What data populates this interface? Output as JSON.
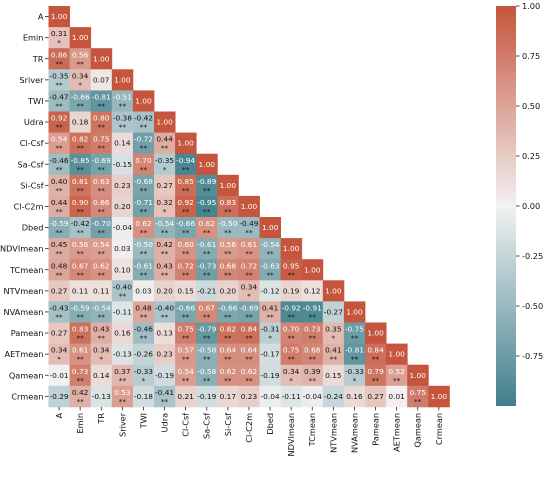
{
  "chart_data": {
    "type": "heatmap",
    "title": "",
    "xlabel": "",
    "ylabel": "",
    "variables": [
      "A",
      "Emin",
      "TR",
      "Sriver",
      "TWI",
      "Udra",
      "Cl-Csf",
      "Sa-Csf",
      "Si-Csf",
      "Cl-C2m",
      "Dbed",
      "NDVImean",
      "TCmean",
      "NTVmean",
      "NVAmean",
      "Pamean",
      "AETmean",
      "Qamean",
      "Crmean"
    ],
    "rows": [
      {
        "label": "A",
        "values": [
          "1.00"
        ],
        "sig": [
          ""
        ]
      },
      {
        "label": "Emin",
        "values": [
          "0.31",
          "1.00"
        ],
        "sig": [
          "*",
          ""
        ]
      },
      {
        "label": "TR",
        "values": [
          "0.86",
          "0.56",
          "1.00"
        ],
        "sig": [
          "**",
          "**",
          ""
        ]
      },
      {
        "label": "Sriver",
        "values": [
          "-0.35",
          "0.34",
          "0.07",
          "1.00"
        ],
        "sig": [
          "**",
          "*",
          "",
          ""
        ]
      },
      {
        "label": "TWI",
        "values": [
          "-0.47",
          "-0.66",
          "-0.81",
          "-0.51",
          "1.00"
        ],
        "sig": [
          "**",
          "**",
          "**",
          "**",
          ""
        ]
      },
      {
        "label": "Udra",
        "values": [
          "0.92",
          "0.18",
          "0.80",
          "-0.38",
          "-0.42",
          "1.00"
        ],
        "sig": [
          "**",
          "",
          "**",
          "**",
          "**",
          ""
        ]
      },
      {
        "label": "Cl-Csf",
        "values": [
          "0.54",
          "0.82",
          "0.75",
          "0.14",
          "-0.72",
          "0.44",
          "1.00"
        ],
        "sig": [
          "**",
          "**",
          "**",
          "",
          "**",
          "**",
          ""
        ]
      },
      {
        "label": "Sa-Csf",
        "values": [
          "-0.46",
          "-0.85",
          "-0.69",
          "-0.15",
          "0.70",
          "-0.35",
          "-0.94",
          "1.00"
        ],
        "sig": [
          "**",
          "**",
          "**",
          "",
          "**",
          "*",
          "**",
          ""
        ]
      },
      {
        "label": "Si-Csf",
        "values": [
          "0.40",
          "0.81",
          "0.63",
          "0.23",
          "-0.68",
          "0.27",
          "0.85",
          "-0.89",
          "1.00"
        ],
        "sig": [
          "**",
          "**",
          "**",
          "",
          "**",
          "",
          "**",
          "**",
          ""
        ]
      },
      {
        "label": "Cl-C2m",
        "values": [
          "0.44",
          "0.90",
          "0.66",
          "0.20",
          "-0.71",
          "0.32",
          "0.92",
          "-0.95",
          "0.83",
          "1.00"
        ],
        "sig": [
          "**",
          "**",
          "**",
          "",
          "**",
          "*",
          "**",
          "**",
          "**",
          ""
        ]
      },
      {
        "label": "Dbed",
        "values": [
          "-0.59",
          "-0.42",
          "-0.70",
          "-0.04",
          "0.62",
          "-0.54",
          "-0.66",
          "0.62",
          "-0.50",
          "-0.49",
          "1.00"
        ],
        "sig": [
          "**",
          "**",
          "**",
          "",
          "**",
          "**",
          "**",
          "**",
          "**",
          "**",
          ""
        ]
      },
      {
        "label": "NDVImean",
        "values": [
          "0.45",
          "0.56",
          "0.54",
          "0.03",
          "-0.50",
          "0.42",
          "0.60",
          "-0.61",
          "0.56",
          "0.61",
          "-0.54",
          "1.00"
        ],
        "sig": [
          "**",
          "**",
          "**",
          "",
          "**",
          "**",
          "**",
          "**",
          "**",
          "**",
          "**",
          ""
        ]
      },
      {
        "label": "TCmean",
        "values": [
          "0.48",
          "0.67",
          "0.62",
          "0.10",
          "-0.61",
          "0.43",
          "0.72",
          "-0.73",
          "0.68",
          "0.72",
          "-0.63",
          "0.95",
          "1.00"
        ],
        "sig": [
          "**",
          "**",
          "**",
          "",
          "**",
          "**",
          "**",
          "**",
          "**",
          "**",
          "**",
          "**",
          ""
        ]
      },
      {
        "label": "NTVmean",
        "values": [
          "0.27",
          "0.11",
          "0.11",
          "-0.40",
          "0.03",
          "0.20",
          "0.15",
          "-0.21",
          "0.20",
          "0.34",
          "-0.12",
          "0.19",
          "0.12",
          "1.00"
        ],
        "sig": [
          "",
          "",
          "",
          "**",
          "",
          "",
          "",
          "",
          "",
          "*",
          "",
          "",
          "",
          ""
        ]
      },
      {
        "label": "NVAmean",
        "values": [
          "-0.43",
          "-0.59",
          "-0.54",
          "-0.11",
          "0.48",
          "-0.40",
          "-0.66",
          "0.67",
          "-0.66",
          "-0.69",
          "0.41",
          "-0.92",
          "-0.91",
          "-0.27",
          "1.00"
        ],
        "sig": [
          "**",
          "**",
          "**",
          "",
          "**",
          "**",
          "**",
          "**",
          "**",
          "**",
          "**",
          "**",
          "**",
          "",
          ""
        ]
      },
      {
        "label": "Pamean",
        "values": [
          "0.27",
          "0.83",
          "0.43",
          "0.16",
          "-0.46",
          "0.13",
          "0.75",
          "-0.79",
          "0.82",
          "0.84",
          "-0.31",
          "0.70",
          "0.73",
          "0.35",
          "-0.75",
          "1.00"
        ],
        "sig": [
          "",
          "**",
          "**",
          "",
          "**",
          "",
          "**",
          "**",
          "**",
          "**",
          "*",
          "**",
          "**",
          "*",
          "**",
          ""
        ]
      },
      {
        "label": "AETmean",
        "values": [
          "0.34",
          "0.61",
          "0.34",
          "-0.13",
          "-0.26",
          "0.23",
          "0.57",
          "-0.58",
          "0.64",
          "0.64",
          "-0.17",
          "0.75",
          "0.68",
          "0.41",
          "-0.81",
          "0.84",
          "1.00"
        ],
        "sig": [
          "*",
          "**",
          "*",
          "",
          "",
          "",
          "**",
          "**",
          "**",
          "**",
          "",
          "**",
          "**",
          "**",
          "**",
          "**",
          ""
        ]
      },
      {
        "label": "Qamean",
        "values": [
          "-0.01",
          "0.73",
          "0.14",
          "0.37",
          "-0.33",
          "-0.19",
          "0.54",
          "-0.58",
          "0.62",
          "0.62",
          "-0.19",
          "0.34",
          "0.39",
          "0.15",
          "-0.33",
          "0.79",
          "0.52",
          "1.00"
        ],
        "sig": [
          "",
          "**",
          "",
          "**",
          "*",
          "",
          "**",
          "**",
          "**",
          "**",
          "",
          "*",
          "**",
          "",
          "*",
          "**",
          "**",
          ""
        ]
      },
      {
        "label": "Crmean",
        "values": [
          "-0.29",
          "0.42",
          "-0.13",
          "0.53",
          "-0.18",
          "-0.41",
          "0.21",
          "-0.19",
          "0.17",
          "0.23",
          "-0.04",
          "-0.11",
          "-0.04",
          "-0.24",
          "0.16",
          "0.27",
          "0.01",
          "0.75",
          "1.00"
        ],
        "sig": [
          "",
          "**",
          "",
          "**",
          "",
          "**",
          "",
          "",
          "",
          "",
          "",
          "",
          "",
          "",
          "",
          "",
          "",
          "**",
          ""
        ]
      }
    ],
    "vmin": -1.0,
    "vmax": 1.0,
    "colorbar_ticks": [
      "1.00",
      "0.75",
      "0.50",
      "0.25",
      "0.00",
      "-0.25",
      "-0.50",
      "-0.75"
    ],
    "colors": {
      "low": "#3f7f8b",
      "mid": "#f2f2f2",
      "high": "#c5553c"
    }
  }
}
